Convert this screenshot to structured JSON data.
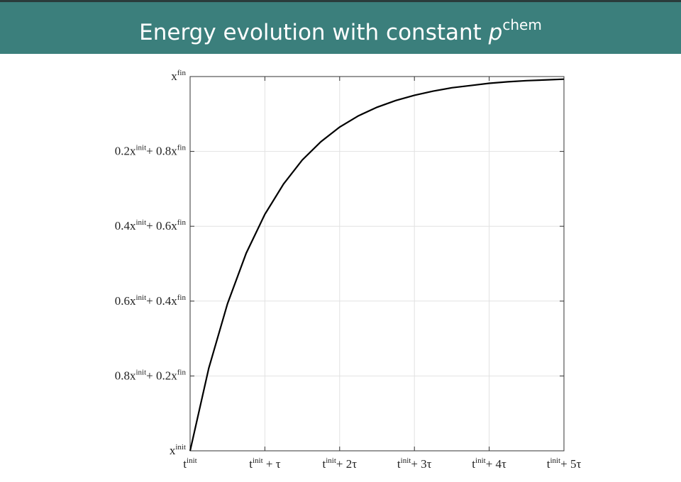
{
  "chart_data": {
    "type": "line",
    "title": {
      "text": "Energy evolution with constant",
      "var": "p",
      "sup": "chem"
    },
    "x": [
      0,
      0.25,
      0.5,
      0.75,
      1,
      1.25,
      1.5,
      1.75,
      2,
      2.25,
      2.5,
      2.75,
      3,
      3.25,
      3.5,
      3.75,
      4,
      4.25,
      4.5,
      4.75,
      5
    ],
    "values": [
      0,
      0.221,
      0.393,
      0.528,
      0.632,
      0.713,
      0.777,
      0.826,
      0.865,
      0.895,
      0.918,
      0.936,
      0.95,
      0.961,
      0.97,
      0.976,
      0.982,
      0.986,
      0.989,
      0.991,
      0.993
    ],
    "color": "#000000",
    "xlim": [
      0,
      5
    ],
    "ylim": [
      0,
      1
    ],
    "xticks": [
      {
        "value": 0,
        "label": [
          "t",
          "init"
        ]
      },
      {
        "value": 1,
        "label": [
          "t",
          "init",
          " + τ"
        ]
      },
      {
        "value": 2,
        "label": [
          "t",
          "init",
          "+ 2τ"
        ]
      },
      {
        "value": 3,
        "label": [
          "t",
          "init",
          "+ 3τ"
        ]
      },
      {
        "value": 4,
        "label": [
          "t",
          "init",
          "+ 4τ"
        ]
      },
      {
        "value": 5,
        "label": [
          "t",
          "init",
          "+ 5τ"
        ]
      }
    ],
    "yticks": [
      {
        "value": 0,
        "label": [
          "x",
          "init"
        ]
      },
      {
        "value": 0.2,
        "label": [
          "0.8x",
          "init",
          "+ 0.2x",
          "fin"
        ]
      },
      {
        "value": 0.4,
        "label": [
          "0.6x",
          "init",
          "+ 0.4x",
          "fin"
        ]
      },
      {
        "value": 0.6,
        "label": [
          "0.4x",
          "init",
          "+ 0.6x",
          "fin"
        ]
      },
      {
        "value": 0.8,
        "label": [
          "0.2x",
          "init",
          "+ 0.8x",
          "fin"
        ]
      },
      {
        "value": 1,
        "label": [
          "x",
          "fin"
        ]
      }
    ],
    "grid": true
  }
}
